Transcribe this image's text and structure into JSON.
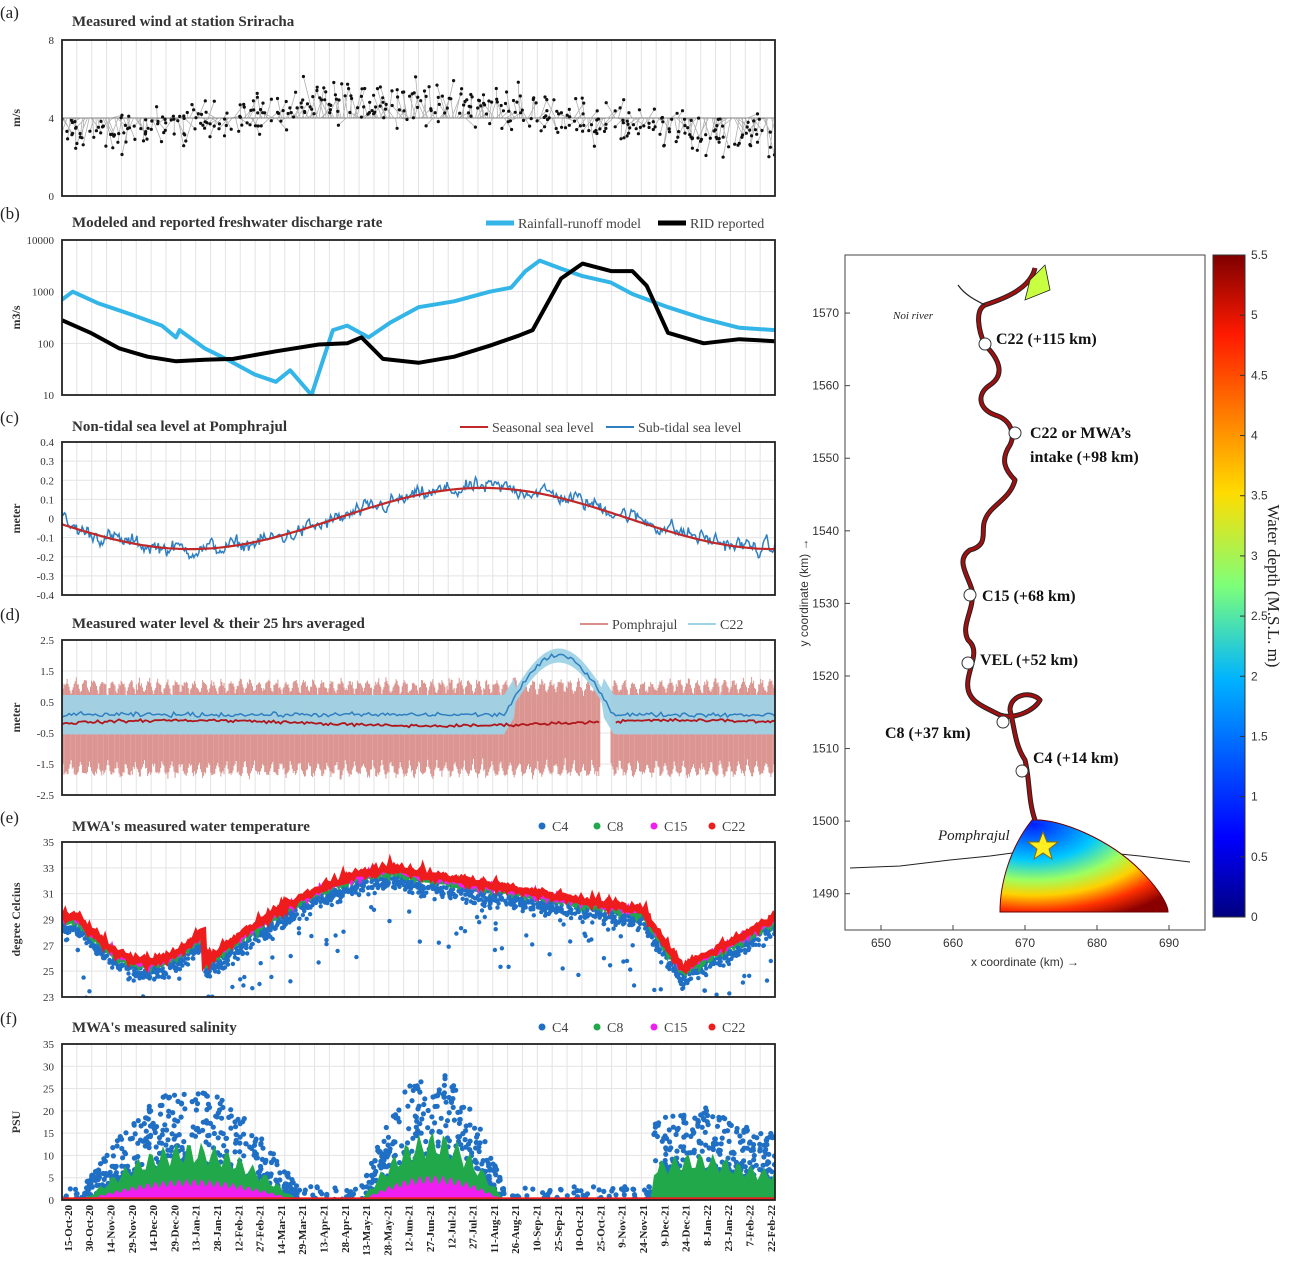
{
  "x_ticks": [
    "15-Oct-20",
    "30-Oct-20",
    "14-Nov-20",
    "29-Nov-20",
    "14-Dec-20",
    "29-Dec-20",
    "13-Jan-21",
    "28-Jan-21",
    "12-Feb-21",
    "27-Feb-21",
    "14-Mar-21",
    "29-Mar-21",
    "13-Apr-21",
    "28-Apr-21",
    "13-May-21",
    "28-May-21",
    "12-Jun-21",
    "27-Jun-21",
    "12-Jul-21",
    "27-Jul-21",
    "11-Aug-21",
    "26-Aug-21",
    "10-Sep-21",
    "25-Sep-21",
    "10-Oct-21",
    "25-Oct-21",
    "9-Nov-21",
    "24-Nov-21",
    "9-Dec-21",
    "24-Dec-21",
    "8-Jan-22",
    "23-Jan-22",
    "7-Feb-22",
    "22-Feb-22"
  ],
  "chart_data": [
    {
      "id": "a",
      "letter": "(a)",
      "type": "line",
      "title": "Measured wind at station Sriracha",
      "ylabel": "m/s",
      "yticks": [
        "8",
        "4",
        "0"
      ],
      "ylim": [
        0,
        8
      ],
      "legend": [],
      "series": [
        {
          "name": "",
          "color": "#000000",
          "note_values_mean": 4.0
        }
      ]
    },
    {
      "id": "b",
      "letter": "(b)",
      "type": "line",
      "title": "Modeled and reported freshwater discharge rate",
      "ylabel": "m3/s",
      "yticks": [
        "10000",
        "1000",
        "100",
        "10"
      ],
      "ylim": [
        10,
        10000
      ],
      "yscale": "log",
      "legend": [
        "Rainfall-runoff model",
        "RID reported"
      ],
      "series": [
        {
          "name": "Rainfall-runoff model",
          "color": "#33b5e8",
          "x": [
            0,
            0.015,
            0.05,
            0.1,
            0.14,
            0.16,
            0.165,
            0.2,
            0.23,
            0.27,
            0.3,
            0.32,
            0.35,
            0.38,
            0.4,
            0.43,
            0.46,
            0.5,
            0.55,
            0.6,
            0.63,
            0.65,
            0.67,
            0.7,
            0.73,
            0.77,
            0.8,
            0.85,
            0.9,
            0.95,
            1.0
          ],
          "y": [
            700,
            1000,
            600,
            350,
            220,
            130,
            180,
            80,
            50,
            25,
            18,
            30,
            10,
            180,
            220,
            130,
            250,
            500,
            650,
            1000,
            1200,
            2500,
            4000,
            2800,
            2000,
            1500,
            900,
            500,
            300,
            200,
            180
          ]
        },
        {
          "name": "RID reported",
          "color": "#000000",
          "x": [
            0,
            0.04,
            0.08,
            0.12,
            0.16,
            0.2,
            0.24,
            0.3,
            0.36,
            0.4,
            0.42,
            0.45,
            0.5,
            0.55,
            0.6,
            0.64,
            0.66,
            0.7,
            0.73,
            0.77,
            0.8,
            0.82,
            0.85,
            0.9,
            0.95,
            1.0
          ],
          "y": [
            280,
            160,
            80,
            55,
            45,
            48,
            50,
            70,
            95,
            100,
            130,
            50,
            42,
            55,
            90,
            140,
            180,
            1800,
            3500,
            2500,
            2500,
            1300,
            160,
            100,
            120,
            110
          ]
        }
      ]
    },
    {
      "id": "c",
      "letter": "(c)",
      "type": "line",
      "title": "Non-tidal sea level at Pomphrajul",
      "ylabel": "meter",
      "yticks": [
        "0.4",
        "0.3",
        "0.2",
        "0.1",
        "0",
        "-0.1",
        "-0.2",
        "-0.3",
        "-0.4"
      ],
      "ylim": [
        -0.4,
        0.4
      ],
      "legend": [
        "Seasonal sea level",
        "Sub-tidal sea level"
      ],
      "series": [
        {
          "name": "Seasonal sea level",
          "color": "#c0282a",
          "amplitude": 0.16
        },
        {
          "name": "Sub-tidal sea level",
          "color": "#2f7fc1"
        }
      ]
    },
    {
      "id": "d",
      "letter": "(d)",
      "type": "line",
      "title": "Measured water level & their 25 hrs averaged",
      "ylabel": "meter",
      "yticks": [
        "2.5",
        "1.5",
        "0.5",
        "-0.5",
        "-1.5",
        "-2.5"
      ],
      "ylim": [
        -2.5,
        3.0
      ],
      "legend": [
        "Pomphrajul",
        "C22"
      ],
      "series": [
        {
          "name": "Pomphrajul",
          "color": "#d9908c"
        },
        {
          "name": "C22",
          "color": "#9fd3e6"
        }
      ]
    },
    {
      "id": "e",
      "letter": "(e)",
      "type": "scatter",
      "title": "MWA's measured water temperature",
      "ylabel": "degree Celcius",
      "yticks": [
        "35",
        "33",
        "31",
        "29",
        "27",
        "25",
        "23"
      ],
      "ylim": [
        23,
        35
      ],
      "legend": [
        "C4",
        "C8",
        "C15",
        "C22"
      ],
      "series": [
        {
          "name": "C4",
          "color": "#1f6fc5"
        },
        {
          "name": "C8",
          "color": "#20a84a"
        },
        {
          "name": "C15",
          "color": "#f01ef0"
        },
        {
          "name": "C22",
          "color": "#ee1c1c"
        }
      ]
    },
    {
      "id": "f",
      "letter": "(f)",
      "type": "scatter",
      "title": "MWA's measured salinity",
      "ylabel": "PSU",
      "yticks": [
        "35",
        "30",
        "25",
        "20",
        "15",
        "10",
        "5",
        "0"
      ],
      "ylim": [
        0,
        35
      ],
      "legend": [
        "C4",
        "C8",
        "C15",
        "C22"
      ],
      "series": [
        {
          "name": "C4",
          "color": "#1f6fc5"
        },
        {
          "name": "C8",
          "color": "#20a84a"
        },
        {
          "name": "C15",
          "color": "#f01ef0"
        },
        {
          "name": "C22",
          "color": "#ee1c1c"
        }
      ]
    }
  ],
  "map": {
    "xticks": [
      "650",
      "660",
      "670",
      "680",
      "690"
    ],
    "yticks": [
      "1570",
      "1560",
      "1550",
      "1540",
      "1530",
      "1520",
      "1510",
      "1500",
      "1490"
    ],
    "xlabel": "x coordinate (km) →",
    "ylabel": "y coordinate (km) →",
    "noi_river": "Noi river",
    "pomphrajul": "Pomphrajul",
    "stations": [
      {
        "label": "C22 (+115 km)"
      },
      {
        "label": "C22 or MWA’s"
      },
      {
        "label": "intake (+98 km)"
      },
      {
        "label": "C15 (+68 km)"
      },
      {
        "label": "VEL (+52 km)"
      },
      {
        "label": "C8 (+37 km)"
      },
      {
        "label": "C4 (+14 km)"
      }
    ],
    "colorbar": {
      "label": "Water depth (M.S.L. m)",
      "ticks": [
        "5",
        "4.5",
        "4",
        "3.5",
        "3",
        "2.5",
        "2",
        "1.5",
        "1",
        "0.5",
        "0"
      ],
      "top_tick": "5.5",
      "range": [
        0,
        5.5
      ],
      "colormap": "jet"
    }
  }
}
